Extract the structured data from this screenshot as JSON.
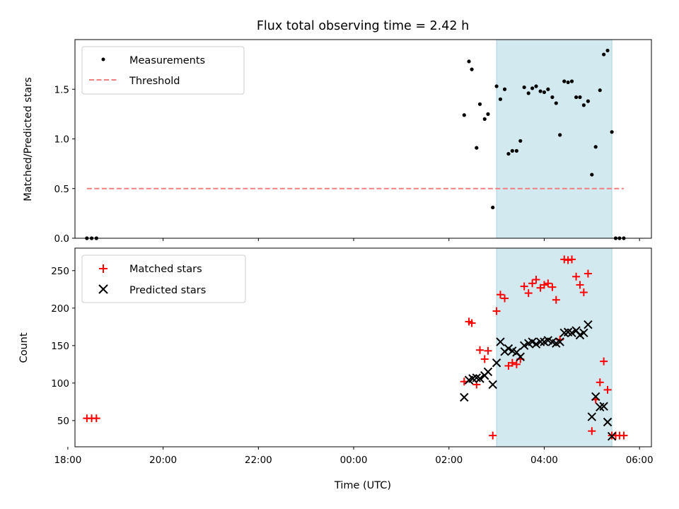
{
  "chart_data": [
    {
      "type": "scatter",
      "title": "Flux total observing time = 2.42 h",
      "xlabel": "",
      "ylabel": "Matched/Predicted stars",
      "xlim": [
        18.15,
        30.25
      ],
      "ylim": [
        0,
        2.0
      ],
      "yticks": [
        0.0,
        0.5,
        1.0,
        1.5
      ],
      "ytick_labels": [
        "0.0",
        "0.5",
        "1.0",
        "1.5"
      ],
      "shaded_region": {
        "x_start": 27.0,
        "x_end": 29.42,
        "color": "#d3e9f0"
      },
      "series": [
        {
          "name": "Measurements",
          "marker": "dot",
          "color": "#000000",
          "x": [
            18.4,
            18.5,
            18.6,
            26.32,
            26.42,
            26.48,
            26.58,
            26.65,
            26.75,
            26.82,
            26.92,
            27.0,
            27.08,
            27.17,
            27.25,
            27.33,
            27.42,
            27.5,
            27.58,
            27.67,
            27.75,
            27.83,
            27.92,
            28.0,
            28.08,
            28.17,
            28.25,
            28.33,
            28.42,
            28.5,
            28.58,
            28.67,
            28.75,
            28.83,
            28.92,
            29.0,
            29.08,
            29.17,
            29.25,
            29.33,
            29.42,
            29.5,
            29.58,
            29.67
          ],
          "y": [
            0.0,
            0.0,
            0.0,
            1.24,
            1.78,
            1.7,
            0.91,
            1.35,
            1.2,
            1.25,
            0.31,
            1.53,
            1.4,
            1.5,
            0.85,
            0.88,
            0.88,
            0.98,
            1.52,
            1.46,
            1.51,
            1.53,
            1.48,
            1.47,
            1.5,
            1.42,
            1.36,
            1.04,
            1.58,
            1.57,
            1.58,
            1.42,
            1.42,
            1.34,
            1.38,
            0.64,
            0.92,
            1.49,
            1.85,
            1.89,
            1.07,
            0.0,
            0.0,
            0.0
          ]
        },
        {
          "name": "Threshold",
          "marker": "dashed-line",
          "color": "#f08080",
          "x": [
            18.4,
            29.67
          ],
          "y": [
            0.5,
            0.5
          ]
        }
      ]
    },
    {
      "type": "scatter",
      "title": "",
      "xlabel": "Time (UTC)",
      "ylabel": "Count",
      "xlim": [
        18.15,
        30.25
      ],
      "ylim": [
        15,
        280
      ],
      "yticks": [
        50,
        100,
        150,
        200,
        250
      ],
      "ytick_labels": [
        "50",
        "100",
        "150",
        "200",
        "250"
      ],
      "xticks": [
        18,
        20,
        22,
        24,
        26,
        28,
        30
      ],
      "xtick_labels": [
        "18:00",
        "20:00",
        "22:00",
        "00:00",
        "02:00",
        "04:00",
        "06:00"
      ],
      "shaded_region": {
        "x_start": 27.0,
        "x_end": 29.42,
        "color": "#d3e9f0"
      },
      "series": [
        {
          "name": "Matched stars",
          "marker": "plus",
          "color": "#ff0000",
          "x": [
            18.4,
            18.5,
            18.6,
            26.32,
            26.42,
            26.48,
            26.58,
            26.65,
            26.75,
            26.82,
            26.92,
            27.0,
            27.08,
            27.17,
            27.25,
            27.33,
            27.42,
            27.5,
            27.58,
            27.67,
            27.75,
            27.83,
            27.92,
            28.0,
            28.08,
            28.17,
            28.25,
            28.33,
            28.42,
            28.5,
            28.58,
            28.67,
            28.75,
            28.83,
            28.92,
            29.0,
            29.08,
            29.17,
            29.25,
            29.33,
            29.42,
            29.5,
            29.58,
            29.67
          ],
          "y": [
            53,
            53,
            53,
            102,
            182,
            180,
            98,
            144,
            132,
            143,
            30,
            196,
            218,
            213,
            123,
            127,
            125,
            132,
            229,
            220,
            233,
            238,
            227,
            231,
            233,
            228,
            211,
            158,
            265,
            264,
            265,
            242,
            231,
            221,
            246,
            36,
            78,
            101,
            129,
            91,
            30,
            30,
            30,
            30
          ]
        },
        {
          "name": "Predicted stars",
          "marker": "x",
          "color": "#000000",
          "x": [
            26.32,
            26.42,
            26.5,
            26.58,
            26.65,
            26.75,
            26.82,
            26.92,
            27.0,
            27.08,
            27.17,
            27.25,
            27.33,
            27.42,
            27.5,
            27.58,
            27.67,
            27.75,
            27.83,
            27.92,
            28.0,
            28.08,
            28.17,
            28.25,
            28.33,
            28.42,
            28.5,
            28.58,
            28.67,
            28.75,
            28.83,
            28.92,
            29.0,
            29.08,
            29.17,
            29.25,
            29.33,
            29.42
          ],
          "y": [
            81,
            104,
            106,
            107,
            106,
            110,
            115,
            98,
            127,
            155,
            142,
            146,
            143,
            141,
            135,
            150,
            153,
            155,
            152,
            155,
            155,
            157,
            155,
            153,
            155,
            167,
            168,
            167,
            170,
            164,
            167,
            178,
            55,
            82,
            68,
            69,
            48,
            29
          ]
        }
      ]
    }
  ],
  "legend_top": {
    "measurements_label": "Measurements",
    "threshold_label": "Threshold"
  },
  "legend_bottom": {
    "matched_label": "Matched stars",
    "predicted_label": "Predicted stars"
  }
}
